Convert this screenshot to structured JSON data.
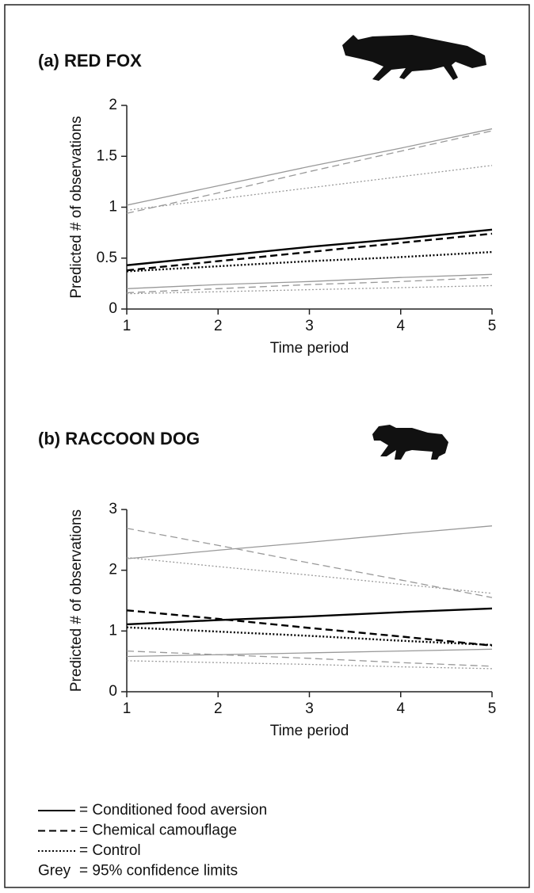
{
  "chart_data": [
    {
      "type": "line",
      "title": "(a)  RED FOX",
      "xlabel": "Time period",
      "ylabel": "Predicted # of observations",
      "x": [
        1,
        2,
        3,
        4,
        5
      ],
      "xlim": [
        1,
        5
      ],
      "xticks": [
        1,
        2,
        3,
        4,
        5
      ],
      "ylim": [
        0,
        2
      ],
      "yticks": [
        0,
        0.5,
        1,
        1.5,
        2
      ],
      "series": [
        {
          "color": "#999999",
          "dash": "solid",
          "values": [
            1.02,
            1.21,
            1.4,
            1.58,
            1.77
          ]
        },
        {
          "color": "#999999",
          "dash": "solid",
          "values": [
            0.2,
            0.24,
            0.27,
            0.31,
            0.34
          ]
        },
        {
          "color": "#999999",
          "dash": "dashed",
          "values": [
            0.94,
            1.14,
            1.35,
            1.55,
            1.75
          ]
        },
        {
          "color": "#999999",
          "dash": "dashed",
          "values": [
            0.16,
            0.2,
            0.24,
            0.27,
            0.31
          ]
        },
        {
          "color": "#999999",
          "dash": "dotted",
          "values": [
            0.97,
            1.08,
            1.19,
            1.3,
            1.41
          ]
        },
        {
          "color": "#999999",
          "dash": "dotted",
          "values": [
            0.15,
            0.17,
            0.19,
            0.21,
            0.23
          ]
        },
        {
          "color": "#000000",
          "dash": "solid",
          "values": [
            0.43,
            0.52,
            0.61,
            0.69,
            0.78
          ]
        },
        {
          "color": "#000000",
          "dash": "dashed",
          "values": [
            0.38,
            0.47,
            0.56,
            0.65,
            0.74
          ]
        },
        {
          "color": "#000000",
          "dash": "dotted",
          "values": [
            0.37,
            0.42,
            0.47,
            0.51,
            0.56
          ]
        }
      ]
    },
    {
      "type": "line",
      "title": "(b)  RACCOON DOG",
      "xlabel": "Time period",
      "ylabel": "Predicted # of observations",
      "x": [
        1,
        2,
        3,
        4,
        5
      ],
      "xlim": [
        1,
        5
      ],
      "xticks": [
        1,
        2,
        3,
        4,
        5
      ],
      "ylim": [
        0,
        3
      ],
      "yticks": [
        0,
        1,
        2,
        3
      ],
      "series": [
        {
          "color": "#999999",
          "dash": "solid",
          "values": [
            2.19,
            2.33,
            2.46,
            2.6,
            2.73
          ]
        },
        {
          "color": "#999999",
          "dash": "solid",
          "values": [
            0.58,
            0.61,
            0.64,
            0.67,
            0.7
          ]
        },
        {
          "color": "#999999",
          "dash": "dashed",
          "values": [
            2.69,
            2.41,
            2.12,
            1.84,
            1.55
          ]
        },
        {
          "color": "#999999",
          "dash": "dashed",
          "values": [
            0.67,
            0.61,
            0.55,
            0.48,
            0.42
          ]
        },
        {
          "color": "#999999",
          "dash": "dotted",
          "values": [
            2.21,
            2.06,
            1.92,
            1.77,
            1.62
          ]
        },
        {
          "color": "#999999",
          "dash": "dotted",
          "values": [
            0.51,
            0.48,
            0.45,
            0.41,
            0.38
          ]
        },
        {
          "color": "#000000",
          "dash": "solid",
          "values": [
            1.11,
            1.18,
            1.24,
            1.31,
            1.37
          ]
        },
        {
          "color": "#000000",
          "dash": "dashed",
          "values": [
            1.34,
            1.2,
            1.05,
            0.91,
            0.76
          ]
        },
        {
          "color": "#000000",
          "dash": "dotted",
          "values": [
            1.06,
            0.99,
            0.92,
            0.84,
            0.77
          ]
        }
      ]
    }
  ],
  "legend": [
    {
      "dash": "solid",
      "color": "#000000",
      "label": "= Conditioned food aversion"
    },
    {
      "dash": "dashed",
      "color": "#000000",
      "label": "= Chemical camouflage"
    },
    {
      "dash": "dotted",
      "color": "#000000",
      "label": "= Control"
    },
    {
      "prefix": "Grey",
      "color": "#888888",
      "label": "= 95% confidence limits"
    }
  ]
}
